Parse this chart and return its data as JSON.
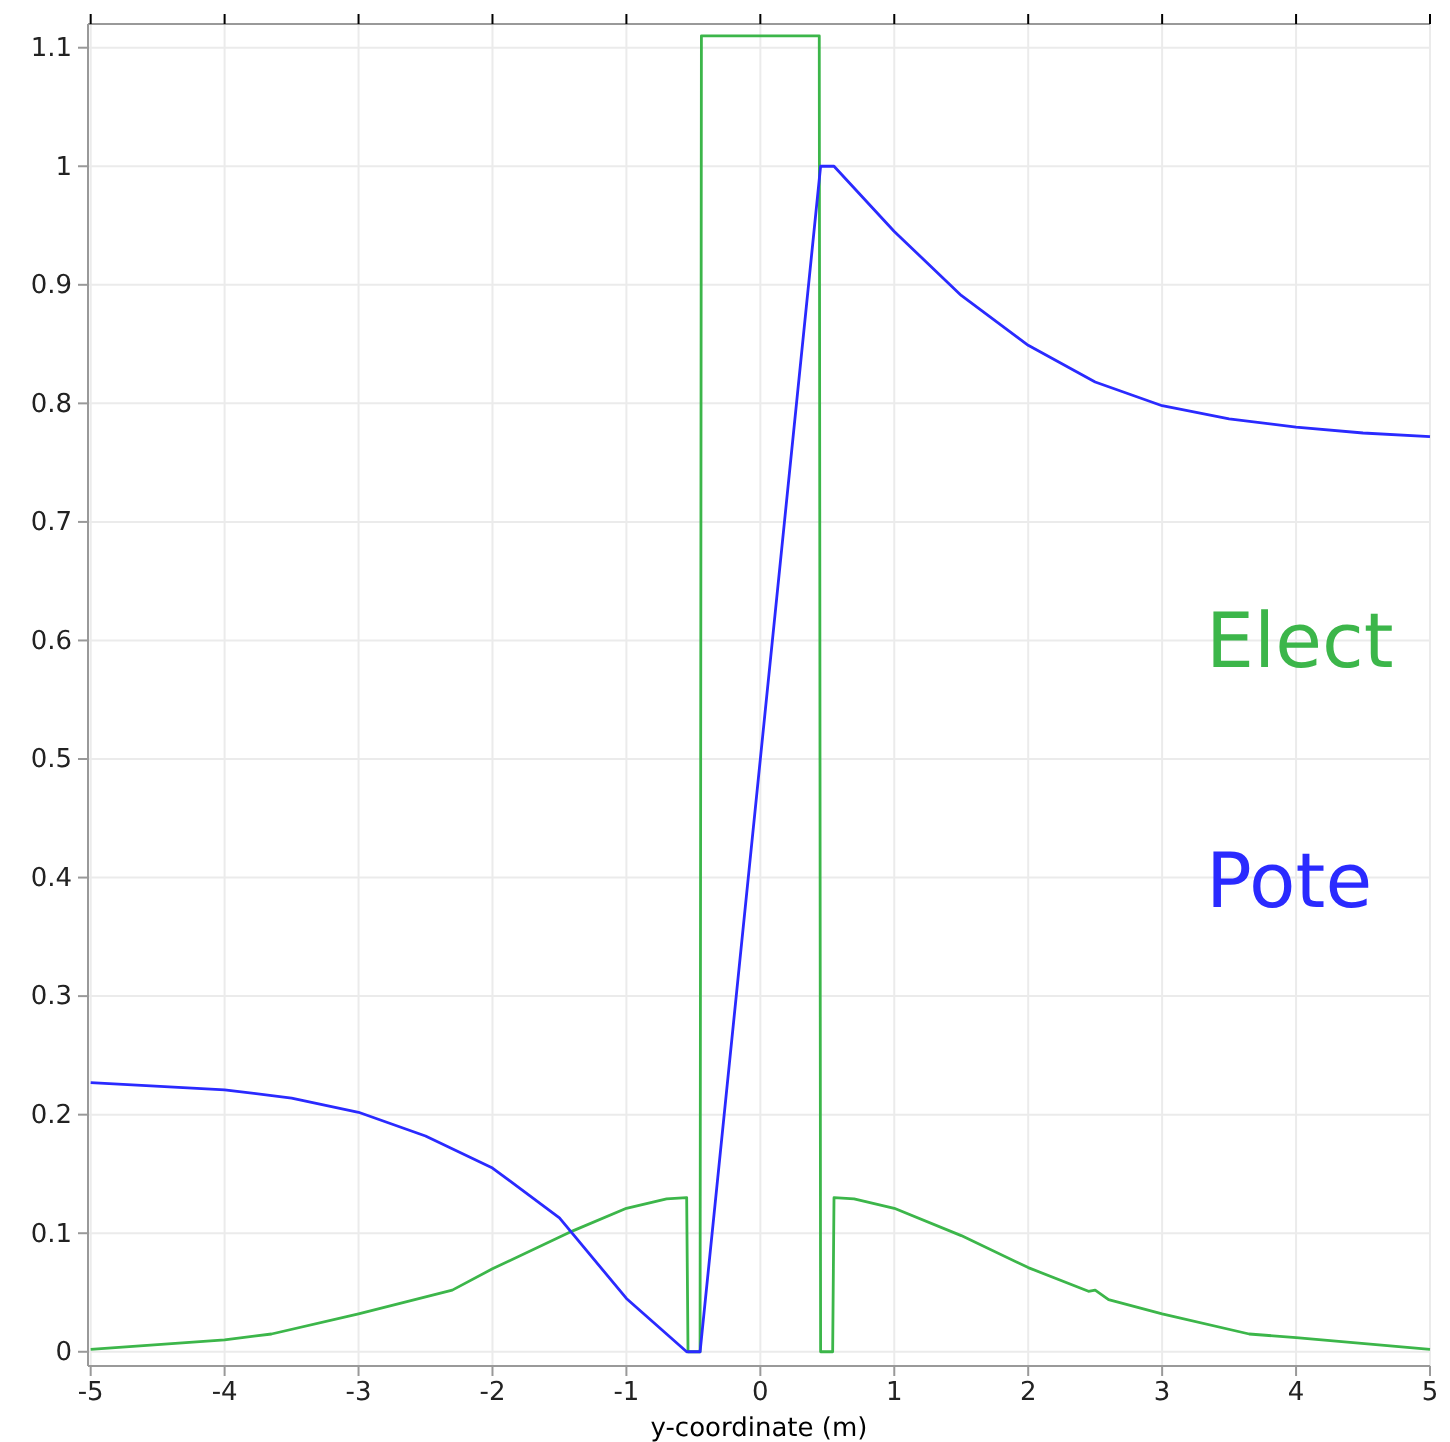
{
  "chart_data": {
    "type": "line",
    "xlabel": "y-coordinate (m)",
    "xlim": [
      -5.02,
      5
    ],
    "ylim": [
      -0.012,
      1.12
    ],
    "xticks": [
      -5,
      -4,
      -3,
      -2,
      -1,
      0,
      1,
      2,
      3,
      4,
      5
    ],
    "yticks": [
      0,
      0.1,
      0.2,
      0.3,
      0.4,
      0.5,
      0.6,
      0.7,
      0.8,
      0.9,
      1,
      1.1
    ],
    "grid": true,
    "legend": "right",
    "line_style": "solid",
    "marker": "none",
    "series": [
      {
        "name": "Elect",
        "color": "#3cb64a",
        "x": [
          -5,
          -4,
          -3.65,
          -3,
          -2.3,
          -2,
          -1.4,
          -1,
          -0.7,
          -0.55,
          -0.54,
          -0.45,
          -0.44,
          0.44,
          0.45,
          0.54,
          0.55,
          0.7,
          1,
          1.5,
          2,
          2.45,
          2.5,
          2.6,
          3,
          3.65,
          4,
          5
        ],
        "values": [
          0.002,
          0.01,
          0.015,
          0.032,
          0.052,
          0.07,
          0.102,
          0.121,
          0.129,
          0.13,
          0,
          0,
          1.11,
          1.11,
          0,
          0,
          0.13,
          0.129,
          0.121,
          0.098,
          0.071,
          0.051,
          0.052,
          0.044,
          0.032,
          0.015,
          0.012,
          0.002
        ]
      },
      {
        "name": "Pote",
        "color": "#2a2aff",
        "x": [
          -5,
          -4,
          -3.5,
          -3,
          -2.5,
          -2,
          -1.5,
          -1,
          -0.55,
          -0.45,
          0.45,
          0.55,
          1,
          1.5,
          2,
          2.5,
          3,
          3.5,
          4,
          4.5,
          5
        ],
        "values": [
          0.227,
          0.221,
          0.214,
          0.202,
          0.182,
          0.155,
          0.113,
          0.045,
          0,
          0,
          1,
          1,
          0.945,
          0.891,
          0.849,
          0.818,
          0.798,
          0.787,
          0.78,
          0.775,
          0.772
        ]
      }
    ]
  }
}
